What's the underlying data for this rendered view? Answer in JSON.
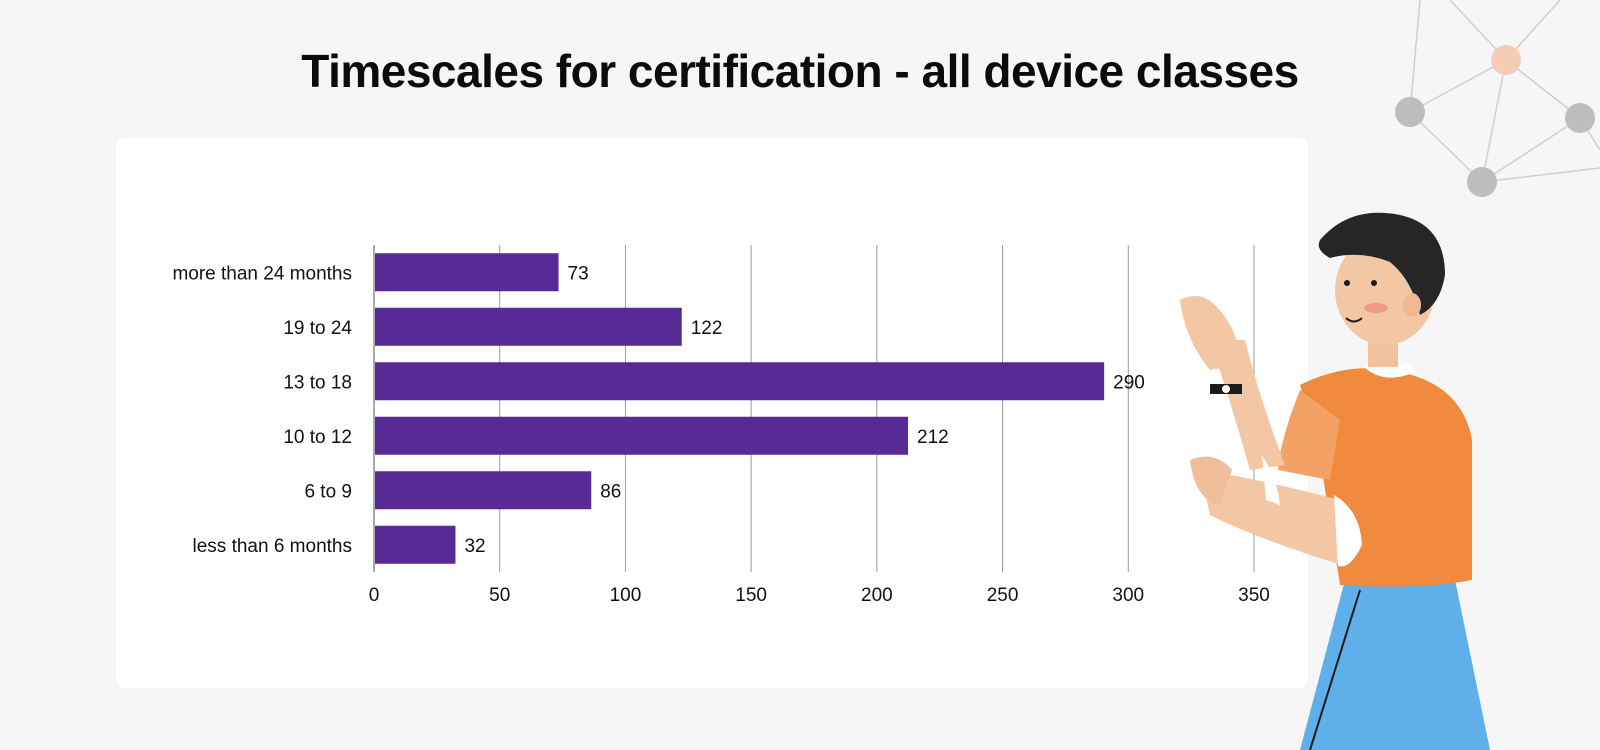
{
  "title": "Timescales for certification - all device classes",
  "chart_data": {
    "type": "bar",
    "orientation": "horizontal",
    "title": "Timescales for certification - all device classes",
    "xlabel": "",
    "ylabel": "",
    "categories": [
      "more than 24 months",
      "19 to 24",
      "13 to 18",
      "10 to 12",
      "6 to 9",
      "less than 6 months"
    ],
    "values": [
      73,
      122,
      290,
      212,
      86,
      32
    ],
    "xlim": [
      0,
      350
    ],
    "xticks": [
      0,
      50,
      100,
      150,
      200,
      250,
      300,
      350
    ],
    "grid": "vertical",
    "bar_color": "#572a96",
    "data_labels": true
  }
}
